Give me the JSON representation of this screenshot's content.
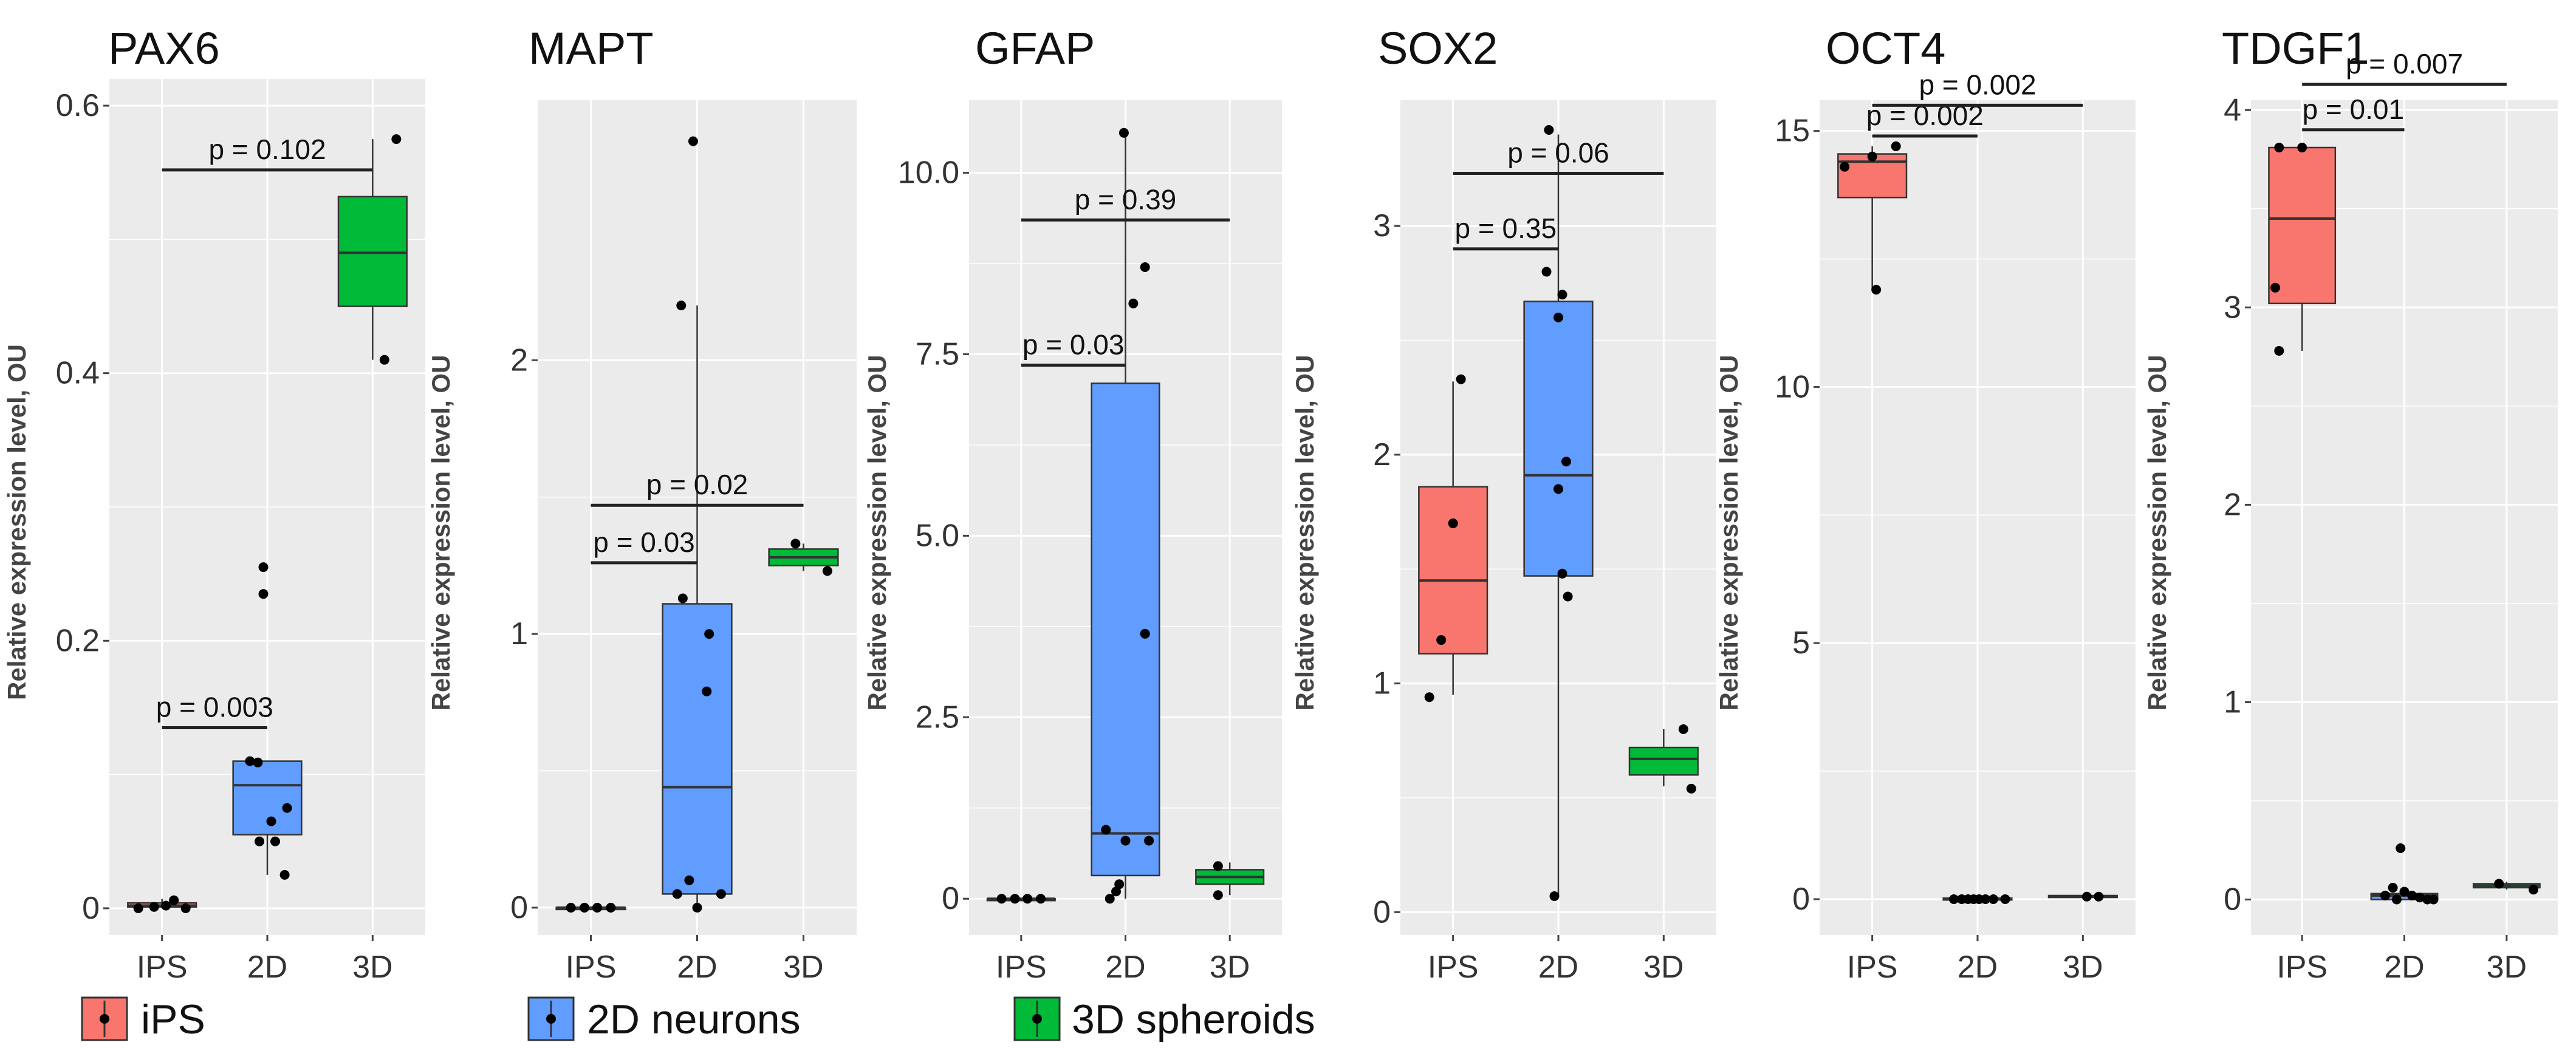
{
  "legend": [
    {
      "label": "iPS",
      "color": "#F8766D"
    },
    {
      "label": "2D neurons",
      "color": "#619CFF"
    },
    {
      "label": "3D spheroids",
      "color": "#00BA38"
    }
  ],
  "chart_data": [
    {
      "type": "box",
      "title": "PAX6",
      "ylabel": "Relative expression level, OU",
      "categories": [
        "IPS",
        "2D",
        "3D"
      ],
      "ylim": [
        -0.02,
        0.62
      ],
      "yticks": [
        0,
        0.2,
        0.4,
        0.6
      ],
      "ytick_labels": [
        "0",
        "0.2",
        "0.4",
        "0.6"
      ],
      "boxes": [
        {
          "group": "IPS",
          "min": 0.0,
          "q1": 0.001,
          "median": 0.002,
          "q3": 0.004,
          "max": 0.007
        },
        {
          "group": "2D",
          "min": 0.025,
          "q1": 0.055,
          "median": 0.092,
          "q3": 0.11,
          "max": 0.11
        },
        {
          "group": "3D",
          "min": 0.41,
          "q1": 0.45,
          "median": 0.49,
          "q3": 0.532,
          "max": 0.575
        }
      ],
      "points": [
        {
          "group": "IPS",
          "values": [
            0.0,
            0.001,
            0.002,
            0.006,
            0.0
          ],
          "jitter": [
            -0.3,
            -0.1,
            0.05,
            0.15,
            0.3
          ]
        },
        {
          "group": "2D",
          "values": [
            0.11,
            0.109,
            0.235,
            0.255,
            0.075,
            0.065,
            0.05,
            0.05,
            0.025
          ],
          "jitter": [
            -0.22,
            -0.12,
            -0.05,
            -0.05,
            0.25,
            0.05,
            -0.1,
            0.1,
            0.22
          ]
        },
        {
          "group": "3D",
          "values": [
            0.575,
            0.41
          ],
          "jitter": [
            0.3,
            0.15
          ]
        }
      ],
      "comparisons": [
        {
          "groups": [
            "IPS",
            "2D"
          ],
          "y": 0.135,
          "label": "p = 0.003"
        },
        {
          "groups": [
            "IPS",
            "3D"
          ],
          "y": 0.552,
          "label": "p = 0.102"
        }
      ]
    },
    {
      "type": "box",
      "title": "MAPT",
      "ylabel": "Relative expression level, OU",
      "categories": [
        "IPS",
        "2D",
        "3D"
      ],
      "ylim": [
        -0.1,
        2.95
      ],
      "yticks": [
        0,
        1,
        2
      ],
      "ytick_labels": [
        "0",
        "1",
        "2"
      ],
      "boxes": [
        {
          "group": "IPS",
          "min": 0.0,
          "q1": 0.0,
          "median": 0.0,
          "q3": 0.0,
          "max": 0.0
        },
        {
          "group": "2D",
          "min": 0.0,
          "q1": 0.05,
          "median": 0.44,
          "q3": 1.11,
          "max": 2.2
        },
        {
          "group": "3D",
          "min": 1.23,
          "q1": 1.25,
          "median": 1.28,
          "q3": 1.31,
          "max": 1.33
        }
      ],
      "points": [
        {
          "group": "IPS",
          "values": [
            0.0,
            0.0,
            0.0,
            0.0
          ],
          "jitter": [
            -0.25,
            -0.08,
            0.08,
            0.25
          ]
        },
        {
          "group": "2D",
          "values": [
            2.2,
            2.8,
            1.13,
            1.0,
            0.79,
            0.1,
            0.05,
            0.05,
            0.0
          ],
          "jitter": [
            -0.2,
            -0.05,
            -0.18,
            0.15,
            0.12,
            -0.1,
            -0.25,
            0.3,
            0.0
          ]
        },
        {
          "group": "3D",
          "values": [
            1.33,
            1.23
          ],
          "jitter": [
            -0.1,
            0.3
          ]
        }
      ],
      "comparisons": [
        {
          "groups": [
            "IPS",
            "2D"
          ],
          "y": 1.26,
          "label": "p = 0.03"
        },
        {
          "groups": [
            "IPS",
            "3D"
          ],
          "y": 1.47,
          "label": "p = 0.02"
        }
      ]
    },
    {
      "type": "box",
      "title": "GFAP",
      "ylabel": "Relative expression level, OU",
      "categories": [
        "IPS",
        "2D",
        "3D"
      ],
      "ylim": [
        -0.5,
        11.0
      ],
      "yticks": [
        0,
        2.5,
        5,
        7.5,
        10
      ],
      "ytick_labels": [
        "0",
        "2.5",
        "5.0",
        "7.5",
        "10.0"
      ],
      "boxes": [
        {
          "group": "IPS",
          "min": 0.0,
          "q1": 0.0,
          "median": 0.0,
          "q3": 0.0,
          "max": 0.0
        },
        {
          "group": "2D",
          "min": 0.0,
          "q1": 0.32,
          "median": 0.9,
          "q3": 7.1,
          "max": 10.6
        },
        {
          "group": "3D",
          "min": 0.05,
          "q1": 0.2,
          "median": 0.3,
          "q3": 0.4,
          "max": 0.5
        }
      ],
      "points": [
        {
          "group": "IPS",
          "values": [
            0.0,
            0.0,
            0.0,
            0.0
          ],
          "jitter": [
            -0.25,
            -0.08,
            0.08,
            0.25
          ]
        },
        {
          "group": "2D",
          "values": [
            10.55,
            8.7,
            8.2,
            3.65,
            0.95,
            0.8,
            0.8,
            0.2,
            0.1,
            0.0
          ],
          "jitter": [
            -0.02,
            0.25,
            0.1,
            0.25,
            -0.25,
            0.0,
            0.3,
            -0.08,
            -0.12,
            -0.2
          ]
        },
        {
          "group": "3D",
          "values": [
            0.45,
            0.05
          ],
          "jitter": [
            -0.15,
            -0.15
          ]
        }
      ],
      "comparisons": [
        {
          "groups": [
            "IPS",
            "2D"
          ],
          "y": 7.35,
          "label": "p = 0.03"
        },
        {
          "groups": [
            "IPS",
            "3D"
          ],
          "y": 9.35,
          "label": "p = 0.39"
        }
      ]
    },
    {
      "type": "box",
      "title": "SOX2",
      "ylabel": "Relative expression level, OU",
      "categories": [
        "IPS",
        "2D",
        "3D"
      ],
      "ylim": [
        -0.1,
        3.55
      ],
      "yticks": [
        0,
        1,
        2,
        3
      ],
      "ytick_labels": [
        "0",
        "1",
        "2",
        "3"
      ],
      "boxes": [
        {
          "group": "IPS",
          "min": 0.95,
          "q1": 1.13,
          "median": 1.45,
          "q3": 1.86,
          "max": 2.32
        },
        {
          "group": "2D",
          "min": 0.07,
          "q1": 1.47,
          "median": 1.91,
          "q3": 2.67,
          "max": 3.4
        },
        {
          "group": "3D",
          "min": 0.55,
          "q1": 0.6,
          "median": 0.67,
          "q3": 0.72,
          "max": 0.8
        }
      ],
      "points": [
        {
          "group": "IPS",
          "values": [
            2.33,
            1.7,
            1.19,
            0.94
          ],
          "jitter": [
            0.1,
            0.0,
            -0.15,
            -0.3
          ]
        },
        {
          "group": "2D",
          "values": [
            3.42,
            2.8,
            2.7,
            2.6,
            1.97,
            1.85,
            1.48,
            1.38,
            0.07
          ],
          "jitter": [
            -0.12,
            -0.15,
            0.05,
            0.0,
            0.1,
            0.0,
            0.05,
            0.12,
            -0.05
          ]
        },
        {
          "group": "3D",
          "values": [
            0.8,
            0.54
          ],
          "jitter": [
            0.25,
            0.35
          ]
        }
      ],
      "comparisons": [
        {
          "groups": [
            "IPS",
            "2D"
          ],
          "y": 2.9,
          "label": "p = 0.35"
        },
        {
          "groups": [
            "IPS",
            "3D"
          ],
          "y": 3.23,
          "label": "p = 0.06"
        }
      ]
    },
    {
      "type": "box",
      "title": "OCT4",
      "ylabel": "Relative expression level, OU",
      "categories": [
        "IPS",
        "2D",
        "3D"
      ],
      "ylim": [
        -0.7,
        15.6
      ],
      "yticks": [
        0,
        5,
        10,
        15
      ],
      "ytick_labels": [
        "0",
        "5",
        "10",
        "15"
      ],
      "boxes": [
        {
          "group": "IPS",
          "min": 11.9,
          "q1": 13.7,
          "median": 14.4,
          "q3": 14.55,
          "max": 14.7
        },
        {
          "group": "2D",
          "min": 0.0,
          "q1": 0.0,
          "median": 0.0,
          "q3": 0.02,
          "max": 0.04
        },
        {
          "group": "3D",
          "min": 0.04,
          "q1": 0.05,
          "median": 0.06,
          "q3": 0.07,
          "max": 0.08
        }
      ],
      "points": [
        {
          "group": "IPS",
          "values": [
            14.3,
            14.5,
            14.7,
            11.9
          ],
          "jitter": [
            -0.35,
            0.0,
            0.3,
            0.05
          ]
        },
        {
          "group": "2D",
          "values": [
            0.0,
            0.0,
            0.0,
            0.0,
            0.0,
            0.0,
            0.0,
            0.0
          ],
          "jitter": [
            -0.3,
            -0.2,
            -0.12,
            -0.05,
            0.02,
            0.1,
            0.2,
            0.35
          ]
        },
        {
          "group": "3D",
          "values": [
            0.05,
            0.05
          ],
          "jitter": [
            0.05,
            0.2
          ]
        }
      ],
      "comparisons": [
        {
          "groups": [
            "IPS",
            "2D"
          ],
          "y": 14.9,
          "label": "p = 0.002"
        },
        {
          "groups": [
            "IPS",
            "3D"
          ],
          "y": 15.5,
          "label": "p = 0.002"
        }
      ]
    },
    {
      "type": "box",
      "title": "TDGF1",
      "ylabel": "Relative expression level, OU",
      "categories": [
        "IPS",
        "2D",
        "3D"
      ],
      "ylim": [
        -0.18,
        4.05
      ],
      "yticks": [
        0,
        1,
        2,
        3,
        4
      ],
      "ytick_labels": [
        "0",
        "1",
        "2",
        "3",
        "4"
      ],
      "boxes": [
        {
          "group": "IPS",
          "min": 2.78,
          "q1": 3.02,
          "median": 3.45,
          "q3": 3.81,
          "max": 3.82
        },
        {
          "group": "2D",
          "min": 0.0,
          "q1": 0.0,
          "median": 0.02,
          "q3": 0.03,
          "max": 0.04
        },
        {
          "group": "3D",
          "min": 0.05,
          "q1": 0.06,
          "median": 0.07,
          "q3": 0.08,
          "max": 0.09
        }
      ],
      "points": [
        {
          "group": "IPS",
          "values": [
            3.81,
            3.81,
            3.1,
            2.78
          ],
          "jitter": [
            -0.3,
            0.0,
            -0.35,
            -0.3
          ]
        },
        {
          "group": "2D",
          "values": [
            0.26,
            0.06,
            0.04,
            0.02,
            0.02,
            0.01,
            0.0,
            0.0,
            0.0
          ],
          "jitter": [
            -0.05,
            -0.15,
            0.0,
            -0.25,
            0.1,
            0.2,
            -0.1,
            0.3,
            0.38
          ]
        },
        {
          "group": "3D",
          "values": [
            0.08,
            0.05
          ],
          "jitter": [
            -0.1,
            0.35
          ]
        }
      ],
      "comparisons": [
        {
          "groups": [
            "IPS",
            "2D"
          ],
          "y": 3.9,
          "label": "p = 0.01"
        },
        {
          "groups": [
            "IPS",
            "3D"
          ],
          "y": 4.13,
          "label": "p = 0.007"
        }
      ]
    }
  ]
}
